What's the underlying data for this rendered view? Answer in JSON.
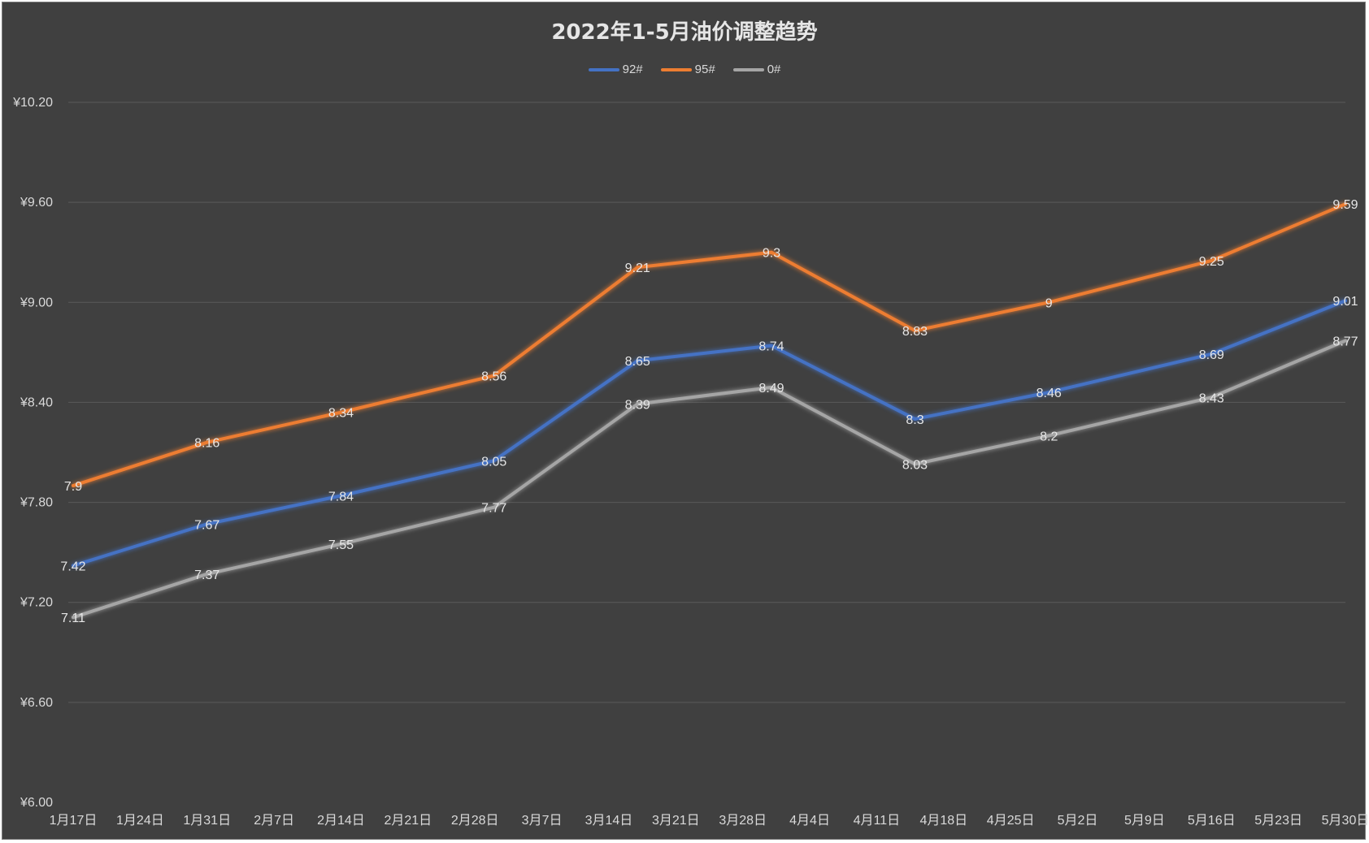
{
  "chart_data": {
    "type": "line",
    "title": "2022年1-5月油价调整趋势",
    "xlabel": "",
    "ylabel": "",
    "ylim": [
      6.0,
      10.2
    ],
    "y_ticks": [
      "¥6.00",
      "¥6.60",
      "¥7.20",
      "¥7.80",
      "¥8.40",
      "¥9.00",
      "¥9.60",
      "¥10.20"
    ],
    "y_tick_values": [
      6.0,
      6.6,
      7.2,
      7.8,
      8.4,
      9.0,
      9.6,
      10.2
    ],
    "categories": [
      "1月17日",
      "1月24日",
      "1月31日",
      "2月7日",
      "2月14日",
      "2月21日",
      "2月28日",
      "3月7日",
      "3月14日",
      "3月21日",
      "3月28日",
      "4月4日",
      "4月11日",
      "4月18日",
      "4月25日",
      "5月2日",
      "5月9日",
      "5月16日",
      "5月23日",
      "5月30日"
    ],
    "grid": true,
    "legend_position": "top",
    "series": [
      {
        "name": "92#",
        "color": "#4472c4",
        "points": [
          {
            "x": "1月17日",
            "y": 7.42
          },
          {
            "x": "1月31日",
            "y": 7.67
          },
          {
            "x": "2月14日",
            "y": 7.84
          },
          {
            "x": "3月2日",
            "y": 8.05
          },
          {
            "x": "3月17日",
            "y": 8.65
          },
          {
            "x": "3月31日",
            "y": 8.74
          },
          {
            "x": "4月15日",
            "y": 8.3
          },
          {
            "x": "4月29日",
            "y": 8.46
          },
          {
            "x": "5月16日",
            "y": 8.69
          },
          {
            "x": "5月30日",
            "y": 9.01
          }
        ]
      },
      {
        "name": "95#",
        "color": "#ed7d31",
        "points": [
          {
            "x": "1月17日",
            "y": 7.9
          },
          {
            "x": "1月31日",
            "y": 8.16
          },
          {
            "x": "2月14日",
            "y": 8.34
          },
          {
            "x": "3月2日",
            "y": 8.56
          },
          {
            "x": "3月17日",
            "y": 9.21
          },
          {
            "x": "3月31日",
            "y": 9.3
          },
          {
            "x": "4月15日",
            "y": 8.83
          },
          {
            "x": "4月29日",
            "y": 9
          },
          {
            "x": "5月16日",
            "y": 9.25
          },
          {
            "x": "5月30日",
            "y": 9.59
          }
        ]
      },
      {
        "name": "0#",
        "color": "#a5a5a5",
        "points": [
          {
            "x": "1月17日",
            "y": 7.11
          },
          {
            "x": "1月31日",
            "y": 7.37
          },
          {
            "x": "2月14日",
            "y": 7.55
          },
          {
            "x": "3月2日",
            "y": 7.77
          },
          {
            "x": "3月17日",
            "y": 8.39
          },
          {
            "x": "3月31日",
            "y": 8.49
          },
          {
            "x": "4月15日",
            "y": 8.03
          },
          {
            "x": "4月29日",
            "y": 8.2
          },
          {
            "x": "5月16日",
            "y": 8.43
          },
          {
            "x": "5月30日",
            "y": 8.77
          }
        ]
      }
    ]
  }
}
